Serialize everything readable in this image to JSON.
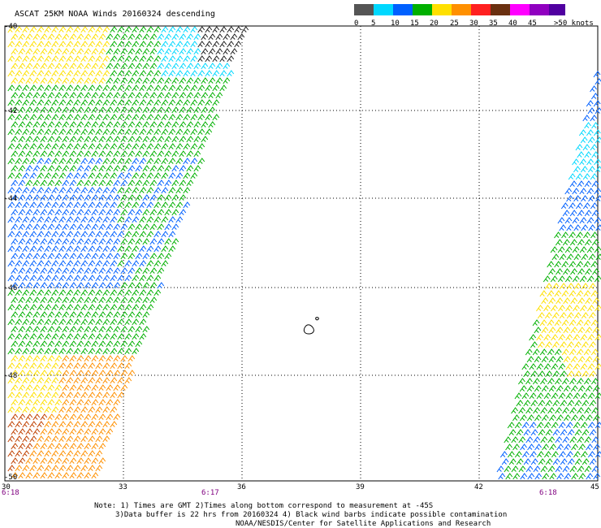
{
  "title": "ASCAT 25KM NOAA Winds 20160324 descending",
  "legend": {
    "labels": [
      "0",
      "5",
      "10",
      "15",
      "20",
      "25",
      "30",
      "35",
      "40",
      "45",
      ">50 knots"
    ],
    "colors": [
      "#555555",
      "#00d8ff",
      "#0060ff",
      "#00b000",
      "#ffe000",
      "#ff9000",
      "#ff2020",
      "#6a3010",
      "#ff00ff",
      "#9000c0",
      "#5000a0"
    ]
  },
  "lat_labels": [
    "-40",
    "-42",
    "-44",
    "-46",
    "-48",
    "-50"
  ],
  "lon_labels": [
    "30",
    "33",
    "36",
    "39",
    "42",
    "45"
  ],
  "times": [
    "6:18",
    "6:17",
    "6:18"
  ],
  "notes": [
    "Note: 1) Times are GMT 2)Times along bottom correspond to measurement at -45S",
    "3)Data buffer is 22 hrs from 20160324 4) Black wind barbs indicate possible contamination",
    "NOAA/NESDIS/Center for Satellite Applications and Research"
  ]
}
